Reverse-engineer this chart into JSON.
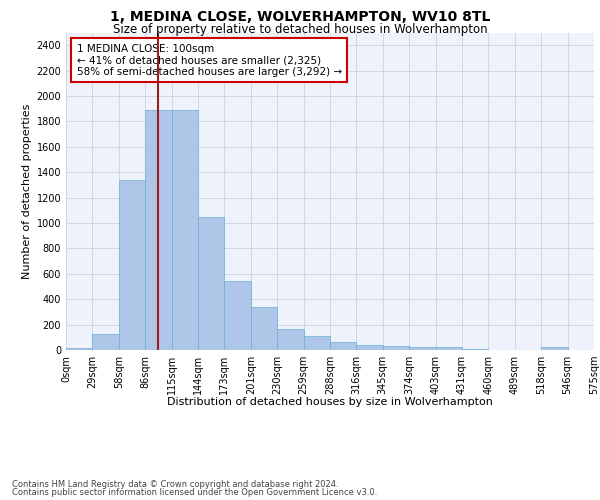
{
  "title": "1, MEDINA CLOSE, WOLVERHAMPTON, WV10 8TL",
  "subtitle": "Size of property relative to detached houses in Wolverhampton",
  "xlabel": "Distribution of detached houses by size in Wolverhampton",
  "ylabel": "Number of detached properties",
  "footer_line1": "Contains HM Land Registry data © Crown copyright and database right 2024.",
  "footer_line2": "Contains public sector information licensed under the Open Government Licence v3.0.",
  "bar_values": [
    15,
    125,
    1340,
    1890,
    1890,
    1045,
    540,
    335,
    165,
    110,
    60,
    40,
    30,
    25,
    20,
    5,
    0,
    0,
    20,
    0
  ],
  "x_labels": [
    "0sqm",
    "29sqm",
    "58sqm",
    "86sqm",
    "115sqm",
    "144sqm",
    "173sqm",
    "201sqm",
    "230sqm",
    "259sqm",
    "288sqm",
    "316sqm",
    "345sqm",
    "374sqm",
    "403sqm",
    "431sqm",
    "460sqm",
    "489sqm",
    "518sqm",
    "546sqm",
    "575sqm"
  ],
  "bar_color": "#aec6e8",
  "bar_edge_color": "#6aaed6",
  "grid_color": "#d0d8e8",
  "background_color": "#eef2fa",
  "vline_color": "#9b1c1c",
  "annotation_text": "1 MEDINA CLOSE: 100sqm\n← 41% of detached houses are smaller (2,325)\n58% of semi-detached houses are larger (3,292) →",
  "annotation_box_color": "#ffffff",
  "annotation_box_edge": "#cc0000",
  "ylim": [
    0,
    2500
  ],
  "yticks": [
    0,
    200,
    400,
    600,
    800,
    1000,
    1200,
    1400,
    1600,
    1800,
    2000,
    2200,
    2400
  ],
  "title_fontsize": 10,
  "subtitle_fontsize": 8.5,
  "annotation_fontsize": 7.5,
  "ylabel_fontsize": 8,
  "xlabel_fontsize": 8,
  "tick_fontsize": 7
}
